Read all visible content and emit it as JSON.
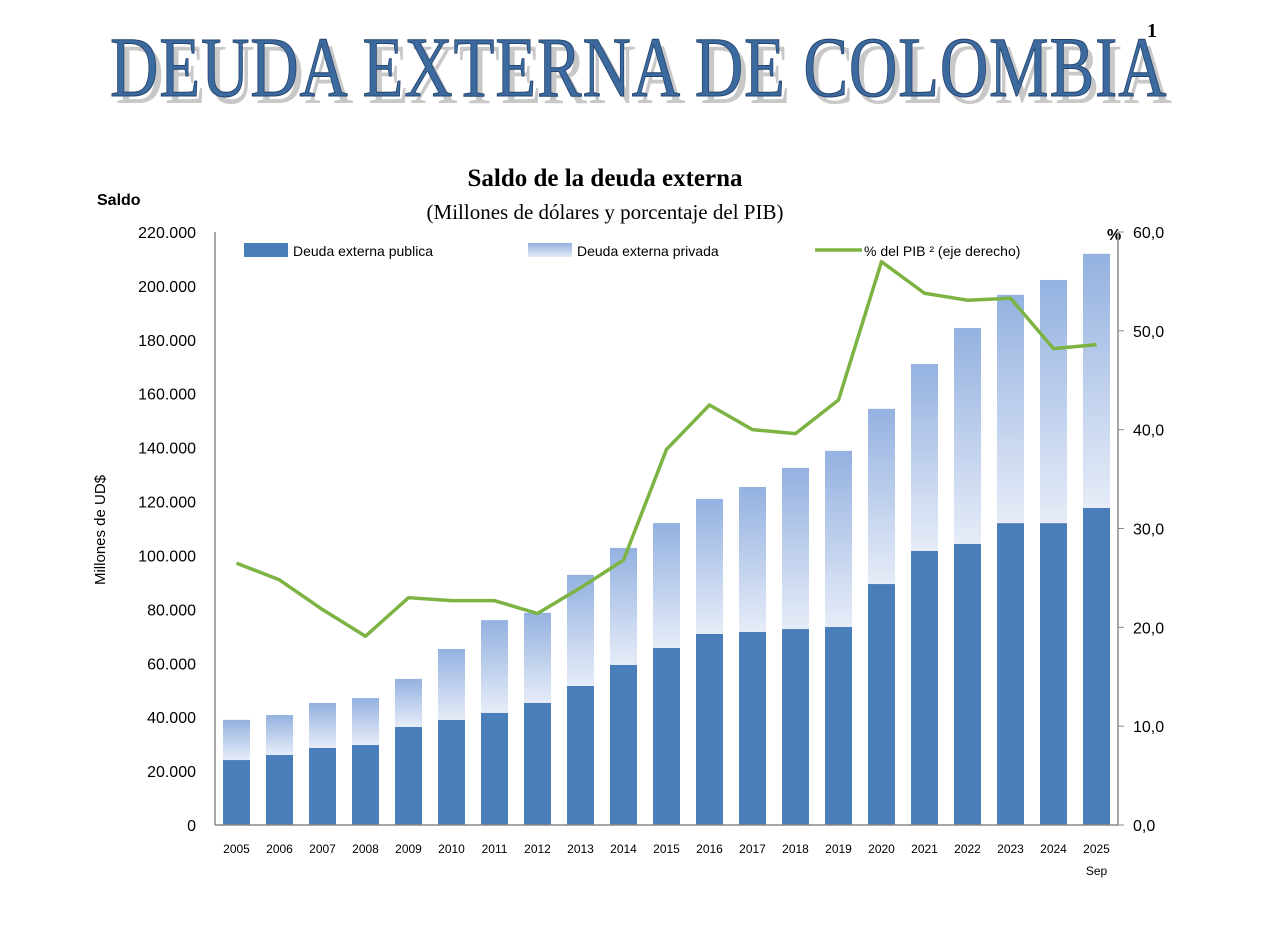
{
  "header": {
    "banner": "DEUDA EXTERNA DE COLOMBIA",
    "page_number": "1"
  },
  "chart_data": {
    "type": "bar",
    "stacked": true,
    "title": "Saldo de la deuda externa",
    "subtitle": "(Millones de dólares y porcentaje del PIB)",
    "left_axis_title": "Saldo",
    "ylabel": "Millones de UD$",
    "right_axis_title": "%",
    "ylim": [
      0,
      220000
    ],
    "y_ticks": [
      "0",
      "20.000",
      "40.000",
      "60.000",
      "80.000",
      "100.000",
      "120.000",
      "140.000",
      "160.000",
      "180.000",
      "200.000",
      "220.000"
    ],
    "y2lim": [
      0,
      60
    ],
    "y2_ticks": [
      "0,0",
      "10,0",
      "20,0",
      "30,0",
      "40,0",
      "50,0",
      "60,0"
    ],
    "categories": [
      "2005",
      "2006",
      "2007",
      "2008",
      "2009",
      "2010",
      "2011",
      "2012",
      "2013",
      "2014",
      "2015",
      "2016",
      "2017",
      "2018",
      "2019",
      "2020",
      "2021",
      "2022",
      "2023",
      "2024",
      "2025"
    ],
    "last_category_note": "Sep",
    "legend_position": "top",
    "grid": false,
    "series": [
      {
        "name": "Deuda externa publica",
        "type": "bar",
        "color": "#4a7ebb",
        "values": [
          24100,
          26000,
          28600,
          29700,
          36400,
          39000,
          41600,
          45300,
          51600,
          59400,
          65700,
          70900,
          71600,
          72700,
          73500,
          89400,
          101700,
          104300,
          112000,
          112000,
          117600
        ]
      },
      {
        "name": "Deuda externa privada",
        "type": "bar",
        "color": "#94b1e0",
        "values": [
          14900,
          14800,
          16700,
          17400,
          17800,
          26300,
          34400,
          33400,
          41200,
          43400,
          46300,
          50100,
          53800,
          59800,
          65300,
          65000,
          69300,
          80100,
          84700,
          90200,
          94300
        ]
      },
      {
        "name": "% del PIB ² (eje derecho)",
        "type": "line",
        "axis": "right",
        "color": "#7cb342",
        "values": [
          26.5,
          24.8,
          21.8,
          19.1,
          23.0,
          22.7,
          22.7,
          21.4,
          24.0,
          26.8,
          38.0,
          42.5,
          40.0,
          39.6,
          43.0,
          57.0,
          53.8,
          53.1,
          53.3,
          48.2,
          48.6
        ]
      }
    ]
  }
}
